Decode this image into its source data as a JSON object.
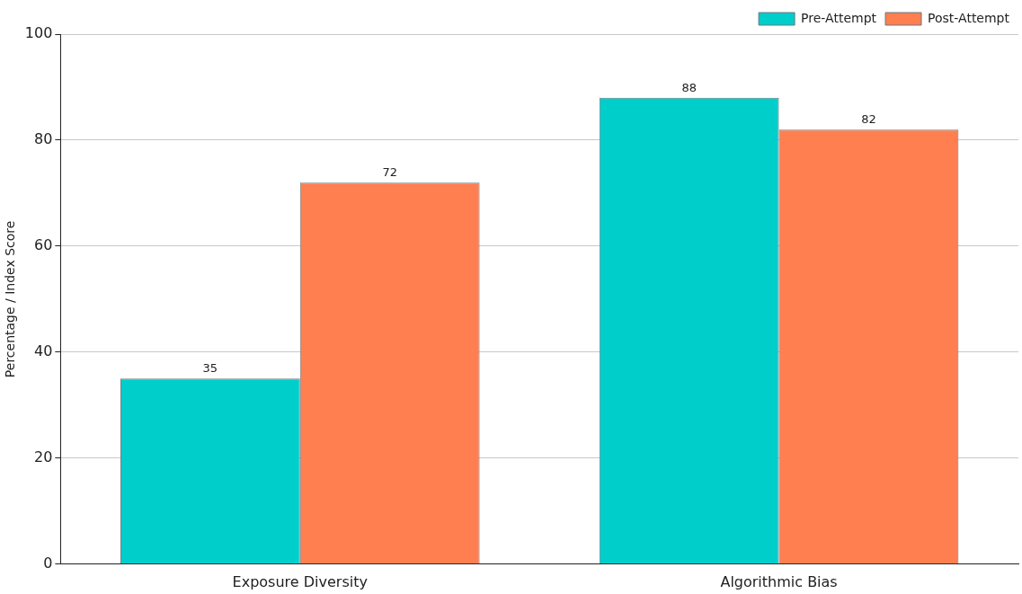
{
  "chart_data": {
    "type": "bar",
    "ylabel": "Percentage / Index Score",
    "categories": [
      "Exposure Diversity",
      "Algorithmic Bias"
    ],
    "series": [
      {
        "name": "Pre-Attempt",
        "color": "#00cecb",
        "values": [
          35,
          88
        ]
      },
      {
        "name": "Post-Attempt",
        "color": "#ff7f50",
        "values": [
          72,
          82
        ]
      }
    ],
    "ylim": [
      0,
      100
    ],
    "yticks": [
      0,
      20,
      40,
      60,
      80,
      100
    ],
    "grid": "y",
    "legend": "top right",
    "data_labels": true
  }
}
